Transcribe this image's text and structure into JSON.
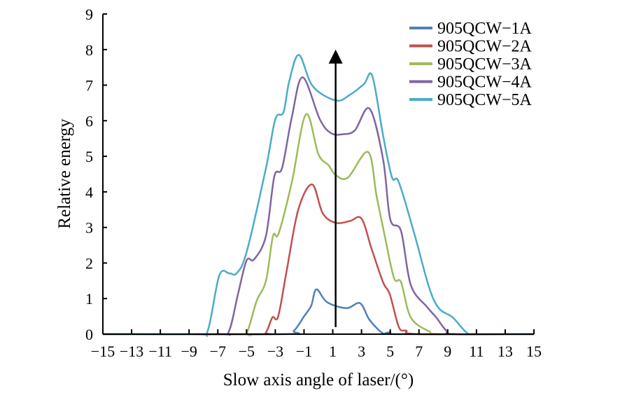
{
  "chart_data": {
    "type": "line",
    "title": "",
    "xlabel": "Slow axis angle of laser/(°)",
    "ylabel": "Relative energy",
    "xlim": [
      -15,
      15
    ],
    "ylim": [
      0,
      9
    ],
    "xticks": [
      "−15",
      "−13",
      "−11",
      "−9",
      "−7",
      "−5",
      "−3",
      "−1",
      "1",
      "3",
      "5",
      "7",
      "9",
      "11",
      "13",
      "15"
    ],
    "xtick_values": [
      -15,
      -13,
      -11,
      -9,
      -7,
      -5,
      -3,
      -1,
      1,
      3,
      5,
      7,
      9,
      11,
      13,
      15
    ],
    "yticks": [
      "0",
      "1",
      "2",
      "3",
      "4",
      "5",
      "6",
      "7",
      "8",
      "9"
    ],
    "grid": false,
    "legend_position": "top-right",
    "annotation": {
      "type": "arrow",
      "x": 1.2,
      "y_from": 0.2,
      "y_to": 8.0
    },
    "series": [
      {
        "name": "905QCW−1A",
        "color": "#4F81BD",
        "points": [
          [
            -15,
            0
          ],
          [
            -2.5,
            0
          ],
          [
            -1.7,
            0.1
          ],
          [
            -1.0,
            0.5
          ],
          [
            -0.5,
            0.8
          ],
          [
            -0.14,
            1.26
          ],
          [
            0.6,
            0.9
          ],
          [
            1.95,
            0.73
          ],
          [
            2.9,
            0.87
          ],
          [
            3.56,
            0.4
          ],
          [
            4.5,
            0.02
          ],
          [
            5.0,
            0.06
          ],
          [
            5.5,
            0
          ],
          [
            15,
            0
          ]
        ]
      },
      {
        "name": "905QCW−2A",
        "color": "#C0504D",
        "points": [
          [
            -15,
            0
          ],
          [
            -4.2,
            0
          ],
          [
            -3.65,
            0.05
          ],
          [
            -3.2,
            0.47
          ],
          [
            -2.8,
            0.5
          ],
          [
            -2.2,
            1.8
          ],
          [
            -1.4,
            3.5
          ],
          [
            -0.44,
            4.21
          ],
          [
            0.3,
            3.4
          ],
          [
            1.2,
            3.13
          ],
          [
            2.2,
            3.18
          ],
          [
            3.0,
            3.25
          ],
          [
            3.7,
            2.4
          ],
          [
            4.5,
            1.46
          ],
          [
            4.97,
            1.12
          ],
          [
            5.6,
            0.2
          ],
          [
            6.1,
            0.1
          ],
          [
            7.0,
            0
          ],
          [
            15,
            0
          ]
        ]
      },
      {
        "name": "905QCW−3A",
        "color": "#9BBB59",
        "points": [
          [
            -15,
            0
          ],
          [
            -5.5,
            0
          ],
          [
            -4.97,
            0.05
          ],
          [
            -4.3,
            0.93
          ],
          [
            -3.65,
            1.5
          ],
          [
            -3.16,
            2.76
          ],
          [
            -2.77,
            2.83
          ],
          [
            -1.85,
            4.27
          ],
          [
            -0.87,
            6.18
          ],
          [
            0.0,
            5.06
          ],
          [
            0.7,
            4.75
          ],
          [
            1.22,
            4.47
          ],
          [
            2.05,
            4.4
          ],
          [
            3.46,
            5.12
          ],
          [
            4.05,
            3.88
          ],
          [
            4.6,
            2.8
          ],
          [
            5.26,
            1.58
          ],
          [
            5.75,
            1.46
          ],
          [
            6.43,
            0.47
          ],
          [
            7.7,
            0.08
          ],
          [
            8.5,
            0
          ],
          [
            15,
            0
          ]
        ]
      },
      {
        "name": "905QCW−4A",
        "color": "#8064A2",
        "points": [
          [
            -15,
            0
          ],
          [
            -7.0,
            0
          ],
          [
            -6.23,
            0.08
          ],
          [
            -5.6,
            1.12
          ],
          [
            -5.0,
            2.07
          ],
          [
            -4.48,
            2.1
          ],
          [
            -3.65,
            2.76
          ],
          [
            -3.07,
            4.43
          ],
          [
            -2.53,
            4.67
          ],
          [
            -1.85,
            6.1
          ],
          [
            -1.1,
            7.22
          ],
          [
            0.1,
            6.04
          ],
          [
            0.88,
            5.65
          ],
          [
            1.7,
            5.62
          ],
          [
            2.54,
            5.73
          ],
          [
            3.56,
            6.34
          ],
          [
            4.5,
            4.92
          ],
          [
            5.0,
            3.23
          ],
          [
            5.75,
            2.9
          ],
          [
            6.43,
            1.38
          ],
          [
            7.55,
            0.77
          ],
          [
            8.2,
            0.47
          ],
          [
            8.9,
            0.1
          ],
          [
            9.5,
            0
          ],
          [
            15,
            0
          ]
        ]
      },
      {
        "name": "905QCW−5A",
        "color": "#4BACC6",
        "points": [
          [
            -15,
            0
          ],
          [
            -8.5,
            0
          ],
          [
            -7.7,
            0.1
          ],
          [
            -6.9,
            1.65
          ],
          [
            -6.2,
            1.71
          ],
          [
            -5.7,
            1.71
          ],
          [
            -5.0,
            2.3
          ],
          [
            -3.65,
            4.67
          ],
          [
            -3.0,
            6.04
          ],
          [
            -2.43,
            6.24
          ],
          [
            -2.04,
            7.09
          ],
          [
            -1.36,
            7.85
          ],
          [
            -0.39,
            6.97
          ],
          [
            1.22,
            6.57
          ],
          [
            2.2,
            6.73
          ],
          [
            3.17,
            7.03
          ],
          [
            3.75,
            7.26
          ],
          [
            4.5,
            5.59
          ],
          [
            5.12,
            4.41
          ],
          [
            5.6,
            4.27
          ],
          [
            6.72,
            2.76
          ],
          [
            7.7,
            1.32
          ],
          [
            8.38,
            0.73
          ],
          [
            9.35,
            0.47
          ],
          [
            10.3,
            0.05
          ],
          [
            11,
            0
          ],
          [
            15,
            0
          ]
        ]
      }
    ]
  }
}
